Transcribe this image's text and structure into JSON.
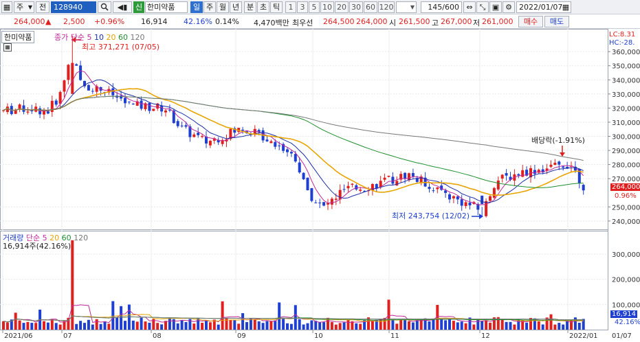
{
  "toolbar": {
    "market_select": "주",
    "fullname_label": "전",
    "code_value": "128940",
    "search_icon": "search-icon",
    "badge_new": "신",
    "stock_name": "한미약품",
    "periods": [
      "일",
      "주",
      "월",
      "년",
      "분",
      "초",
      "틱"
    ],
    "active_period": "일",
    "multipliers": [
      "1",
      "3",
      "5",
      "10",
      "20",
      "30",
      "60",
      "120"
    ],
    "count_value": "145",
    "count_total": "/600",
    "date_value": "2022/01/07"
  },
  "quote": {
    "price": "264,000",
    "change": "2,500",
    "change_rate": "+0.96%",
    "volume": "16,914",
    "volume_rate": "42.16%",
    "turnover": "0.14%",
    "amount": "4,470백만",
    "best_label": "최우선",
    "ask1": "264,500",
    "bid1": "264,000",
    "open_label": "시",
    "open": "261,500",
    "high_label": "고",
    "high": "267,000",
    "low_label": "저",
    "low": "261,000",
    "buy_label": "매수",
    "sell_label": "매도"
  },
  "price_panel": {
    "tab_label": "한미약품",
    "legend_prefix": "종가 단순",
    "ma_periods": [
      "5",
      "10",
      "20",
      "60",
      "120"
    ],
    "high_annotation": "최고 371,271 (07/05)",
    "low_annotation": "최저 243,754 (12/02)",
    "exdiv_annotation": "배당락(-1.91%)",
    "lc_label": "LC:8.31",
    "hc_label": "HC:-28.",
    "current_price_tag": "264,000",
    "current_rate_tag": "0.96%",
    "y_ticks": [
      "360,000",
      "350,000",
      "340,000",
      "330,000",
      "320,000",
      "310,000",
      "300,000",
      "290,000",
      "280,000",
      "270,000",
      "250,000",
      "240,000"
    ]
  },
  "volume_panel": {
    "title": "거래량",
    "legend_prefix": "단순",
    "ma_periods": [
      "5",
      "20",
      "60",
      "120"
    ],
    "current_text": "16,914주(42.16%)",
    "y_ticks": [
      "300,000",
      "200,000",
      "100,000"
    ],
    "current_tag": "16,914",
    "rate_tag": "42.16%"
  },
  "x_axis": {
    "labels": [
      "2021/06",
      "07",
      "08",
      "09",
      "10",
      "11",
      "12",
      "2022/01"
    ],
    "right_label": "01/07"
  },
  "colors": {
    "up": "#e0201f",
    "down": "#1e3fd0",
    "ma5": "#c0289a",
    "ma10": "#1a2fa8",
    "ma20": "#e8a400",
    "ma60": "#1e8f2e",
    "ma120": "#777777"
  },
  "chart_data": {
    "type": "candlestick",
    "title": "한미약품",
    "price_range": [
      237000,
      371271
    ],
    "volume_range": [
      0,
      360000
    ],
    "x_range": [
      "2021/06",
      "2022/01/07"
    ],
    "points": [
      {
        "d": "2021/06",
        "close": 318000
      },
      {
        "d": "07/05",
        "close": 350000,
        "high": 371271
      },
      {
        "d": "07",
        "close": 333000
      },
      {
        "d": "08",
        "close": 318000
      },
      {
        "d": "09",
        "close": 305000
      },
      {
        "d": "10",
        "close": 262000
      },
      {
        "d": "11",
        "close": 268000
      },
      {
        "d": "12/02",
        "close": 248000,
        "low": 243754
      },
      {
        "d": "2022/01/07",
        "open": 261500,
        "high": 267000,
        "low": 261000,
        "close": 264000
      }
    ],
    "volume_last": 16914
  }
}
